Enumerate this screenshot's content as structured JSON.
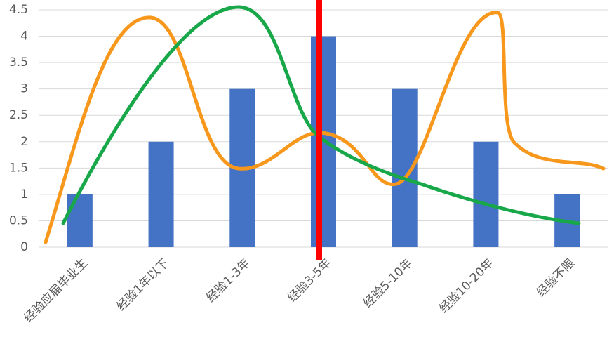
{
  "chart_data": {
    "type": "bar",
    "categories": [
      "经验应届毕业生",
      "经验1年以下",
      "经验1-3年",
      "经验3-5年",
      "经验5-10年",
      "经验10-20年",
      "经验不限"
    ],
    "values": [
      1,
      2,
      3,
      4,
      3,
      2,
      1
    ],
    "color": "#4472c4",
    "ylim": [
      0,
      4.5
    ],
    "yticks": [
      0,
      0.5,
      1,
      1.5,
      2,
      2.5,
      3,
      3.5,
      4,
      4.5
    ],
    "grid": true
  }
}
